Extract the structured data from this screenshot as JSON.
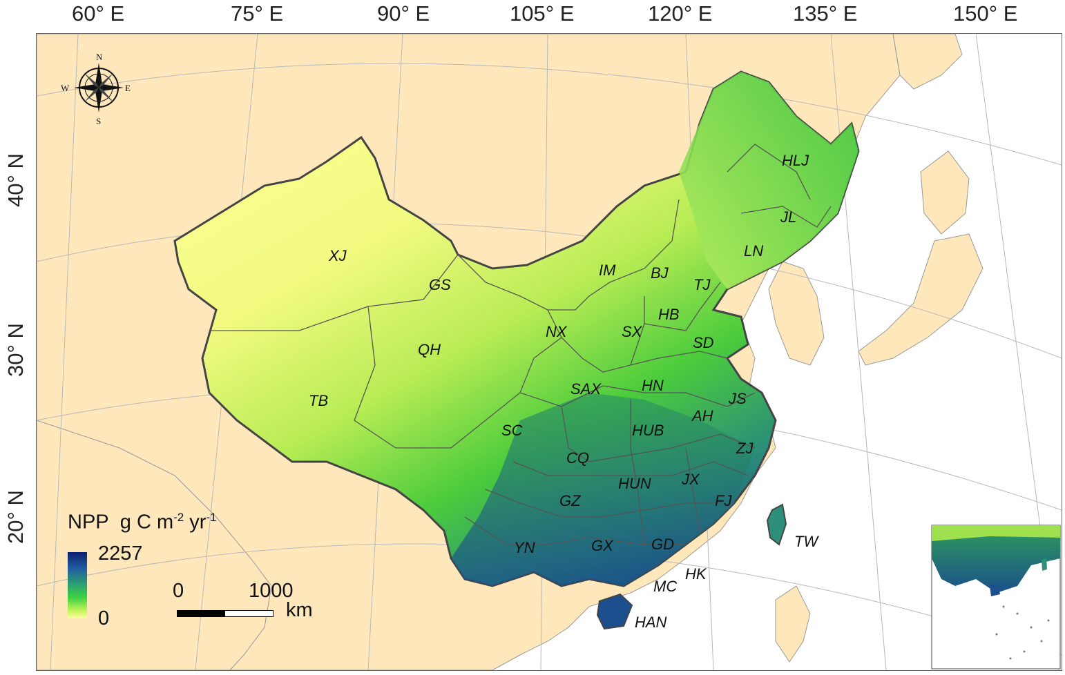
{
  "graticule": {
    "lon_labels": [
      "60° E",
      "75° E",
      "90° E",
      "105° E",
      "120° E",
      "135° E",
      "150° E"
    ],
    "lat_labels": [
      "40° N",
      "30° N",
      "20° N"
    ]
  },
  "compass": {
    "n": "N",
    "s": "S",
    "e": "E",
    "w": "W"
  },
  "provinces": [
    "XJ",
    "GS",
    "QH",
    "TB",
    "NX",
    "IM",
    "BJ",
    "TJ",
    "HB",
    "SX",
    "SD",
    "LN",
    "JL",
    "HLJ",
    "SAX",
    "HN",
    "JS",
    "AH",
    "SC",
    "HUB",
    "CQ",
    "ZJ",
    "JX",
    "HUN",
    "GZ",
    "FJ",
    "YN",
    "GX",
    "GD",
    "HK",
    "MC",
    "TW",
    "HAN"
  ],
  "legend": {
    "title_prefix": "NPP",
    "title_unit": "g C m",
    "exp1": "-2",
    "unit_mid": " yr",
    "exp2": "-1",
    "max": "2257",
    "min": "0",
    "colors": [
      "#0d1f6e",
      "#1f5fa0",
      "#2ea36f",
      "#3ad13f",
      "#c2f25a",
      "#ffff9c"
    ]
  },
  "scale_bar": {
    "start": "0",
    "end": "1000",
    "unit": "km"
  },
  "colors": {
    "land": "#fde7bb",
    "sea": "#ffffff",
    "border": "#555555",
    "grid": "#b8b8b8"
  }
}
